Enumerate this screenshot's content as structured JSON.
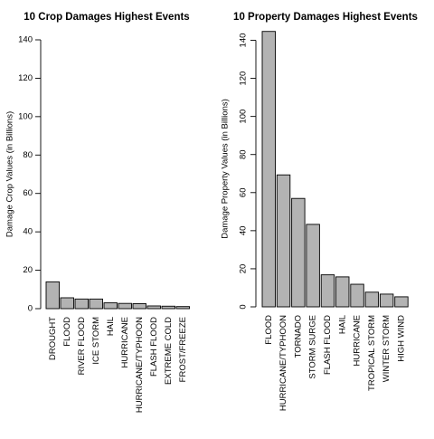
{
  "chart_data": [
    {
      "type": "bar",
      "title": "10 Crop Damages Highest Events",
      "xlabel": "",
      "ylabel": "Damage Crop Values (in Billions)",
      "ylim": [
        0,
        140
      ],
      "yticks": [
        0,
        20,
        40,
        60,
        80,
        100,
        120,
        140
      ],
      "categories": [
        "DROUGHT",
        "FLOOD",
        "RIVER FLOOD",
        "ICE STORM",
        "HAIL",
        "HURRICANE",
        "HURRICANE/TYPHOON",
        "FLASH FLOOD",
        "EXTREME COLD",
        "FROST/FREEZE"
      ],
      "values": [
        13.97,
        5.66,
        5.03,
        5.02,
        3.03,
        2.74,
        2.61,
        1.42,
        1.29,
        1.09
      ],
      "grid": false,
      "colors": {
        "bar_fill": "#b3b3b3",
        "bar_stroke": "#000000"
      }
    },
    {
      "type": "bar",
      "title": "10 Property Damages Highest Events",
      "xlabel": "",
      "ylabel": "Damage Property Values (in Billions)",
      "ylim": [
        0,
        145
      ],
      "yticks": [
        0,
        20,
        40,
        60,
        80,
        100,
        120,
        140
      ],
      "categories": [
        "FLOOD",
        "HURRICANE/TYPHOON",
        "TORNADO",
        "STORM SURGE",
        "FLASH FLOOD",
        "HAIL",
        "HURRICANE",
        "TROPICAL STORM",
        "WINTER STORM",
        "HIGH WIND"
      ],
      "values": [
        144.66,
        69.31,
        56.95,
        43.32,
        16.82,
        15.74,
        11.87,
        7.7,
        6.69,
        5.27
      ],
      "grid": false,
      "colors": {
        "bar_fill": "#b3b3b3",
        "bar_stroke": "#000000"
      }
    }
  ]
}
